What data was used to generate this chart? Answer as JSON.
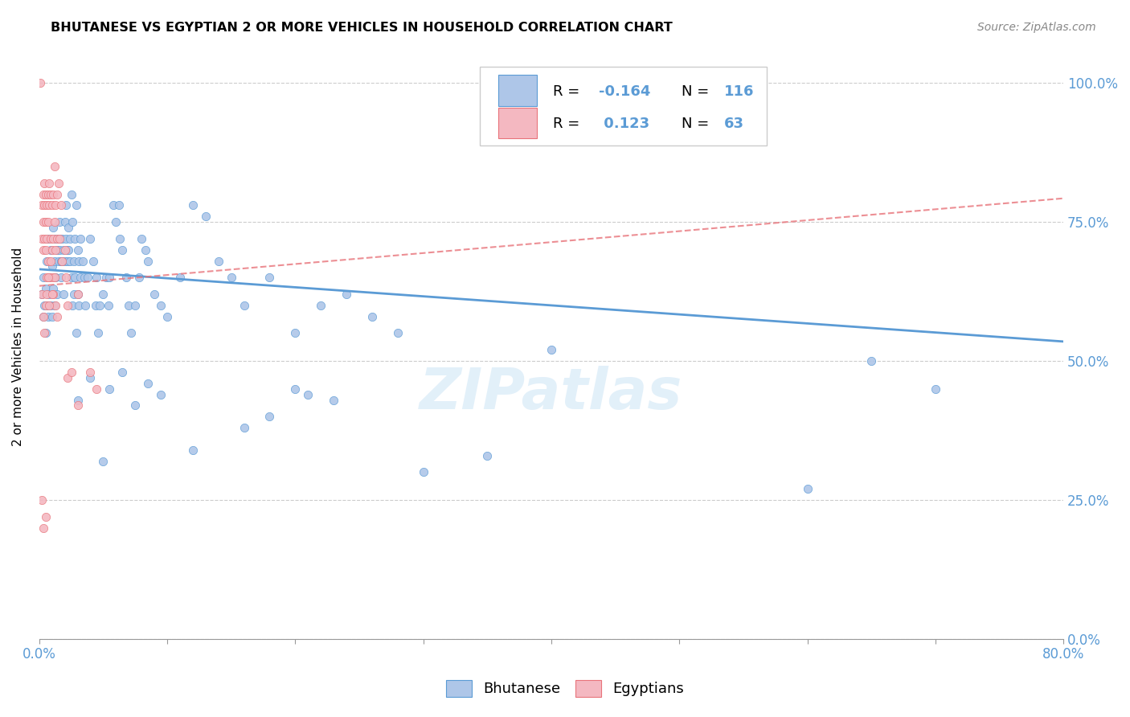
{
  "title": "BHUTANESE VS EGYPTIAN 2 OR MORE VEHICLES IN HOUSEHOLD CORRELATION CHART",
  "source": "Source: ZipAtlas.com",
  "ylabel": "2 or more Vehicles in Household",
  "watermark": "ZIPatlas",
  "blue_R": "-0.164",
  "blue_N": "116",
  "pink_R": "0.123",
  "pink_N": "63",
  "blue_scatter": [
    [
      0.002,
      0.62
    ],
    [
      0.003,
      0.58
    ],
    [
      0.003,
      0.65
    ],
    [
      0.004,
      0.6
    ],
    [
      0.005,
      0.63
    ],
    [
      0.005,
      0.55
    ],
    [
      0.006,
      0.68
    ],
    [
      0.006,
      0.6
    ],
    [
      0.007,
      0.72
    ],
    [
      0.007,
      0.58
    ],
    [
      0.008,
      0.65
    ],
    [
      0.008,
      0.62
    ],
    [
      0.009,
      0.7
    ],
    [
      0.009,
      0.6
    ],
    [
      0.01,
      0.67
    ],
    [
      0.01,
      0.58
    ],
    [
      0.011,
      0.74
    ],
    [
      0.011,
      0.63
    ],
    [
      0.012,
      0.68
    ],
    [
      0.012,
      0.6
    ],
    [
      0.013,
      0.72
    ],
    [
      0.013,
      0.65
    ],
    [
      0.014,
      0.7
    ],
    [
      0.014,
      0.62
    ],
    [
      0.015,
      0.68
    ],
    [
      0.015,
      0.72
    ],
    [
      0.016,
      0.75
    ],
    [
      0.016,
      0.7
    ],
    [
      0.017,
      0.68
    ],
    [
      0.017,
      0.65
    ],
    [
      0.018,
      0.72
    ],
    [
      0.018,
      0.68
    ],
    [
      0.019,
      0.7
    ],
    [
      0.019,
      0.62
    ],
    [
      0.02,
      0.68
    ],
    [
      0.02,
      0.75
    ],
    [
      0.021,
      0.78
    ],
    [
      0.021,
      0.72
    ],
    [
      0.022,
      0.7
    ],
    [
      0.022,
      0.68
    ],
    [
      0.023,
      0.74
    ],
    [
      0.023,
      0.7
    ],
    [
      0.024,
      0.72
    ],
    [
      0.024,
      0.68
    ],
    [
      0.025,
      0.8
    ],
    [
      0.025,
      0.65
    ],
    [
      0.026,
      0.75
    ],
    [
      0.026,
      0.6
    ],
    [
      0.027,
      0.68
    ],
    [
      0.027,
      0.62
    ],
    [
      0.028,
      0.72
    ],
    [
      0.028,
      0.65
    ],
    [
      0.029,
      0.78
    ],
    [
      0.029,
      0.55
    ],
    [
      0.03,
      0.7
    ],
    [
      0.03,
      0.62
    ],
    [
      0.031,
      0.68
    ],
    [
      0.031,
      0.6
    ],
    [
      0.032,
      0.72
    ],
    [
      0.032,
      0.65
    ],
    [
      0.034,
      0.68
    ],
    [
      0.035,
      0.65
    ],
    [
      0.036,
      0.6
    ],
    [
      0.038,
      0.65
    ],
    [
      0.04,
      0.72
    ],
    [
      0.042,
      0.68
    ],
    [
      0.044,
      0.6
    ],
    [
      0.045,
      0.65
    ],
    [
      0.046,
      0.55
    ],
    [
      0.047,
      0.6
    ],
    [
      0.05,
      0.62
    ],
    [
      0.052,
      0.65
    ],
    [
      0.054,
      0.6
    ],
    [
      0.055,
      0.65
    ],
    [
      0.058,
      0.78
    ],
    [
      0.06,
      0.75
    ],
    [
      0.062,
      0.78
    ],
    [
      0.063,
      0.72
    ],
    [
      0.065,
      0.7
    ],
    [
      0.068,
      0.65
    ],
    [
      0.07,
      0.6
    ],
    [
      0.072,
      0.55
    ],
    [
      0.075,
      0.6
    ],
    [
      0.078,
      0.65
    ],
    [
      0.08,
      0.72
    ],
    [
      0.083,
      0.7
    ],
    [
      0.085,
      0.68
    ],
    [
      0.09,
      0.62
    ],
    [
      0.095,
      0.6
    ],
    [
      0.1,
      0.58
    ],
    [
      0.11,
      0.65
    ],
    [
      0.12,
      0.78
    ],
    [
      0.13,
      0.76
    ],
    [
      0.14,
      0.68
    ],
    [
      0.15,
      0.65
    ],
    [
      0.16,
      0.6
    ],
    [
      0.18,
      0.65
    ],
    [
      0.2,
      0.55
    ],
    [
      0.22,
      0.6
    ],
    [
      0.24,
      0.62
    ],
    [
      0.26,
      0.58
    ],
    [
      0.28,
      0.55
    ],
    [
      0.03,
      0.43
    ],
    [
      0.04,
      0.47
    ],
    [
      0.055,
      0.45
    ],
    [
      0.065,
      0.48
    ],
    [
      0.075,
      0.42
    ],
    [
      0.085,
      0.46
    ],
    [
      0.095,
      0.44
    ],
    [
      0.2,
      0.45
    ],
    [
      0.21,
      0.44
    ],
    [
      0.05,
      0.32
    ],
    [
      0.12,
      0.34
    ],
    [
      0.23,
      0.43
    ],
    [
      0.4,
      0.52
    ],
    [
      0.6,
      0.27
    ],
    [
      0.65,
      0.5
    ],
    [
      0.7,
      0.45
    ],
    [
      0.16,
      0.38
    ],
    [
      0.18,
      0.4
    ],
    [
      0.3,
      0.3
    ],
    [
      0.35,
      0.33
    ]
  ],
  "pink_scatter": [
    [
      0.001,
      1.0
    ],
    [
      0.002,
      0.78
    ],
    [
      0.002,
      0.72
    ],
    [
      0.003,
      0.8
    ],
    [
      0.003,
      0.75
    ],
    [
      0.003,
      0.7
    ],
    [
      0.004,
      0.82
    ],
    [
      0.004,
      0.78
    ],
    [
      0.004,
      0.72
    ],
    [
      0.005,
      0.8
    ],
    [
      0.005,
      0.75
    ],
    [
      0.005,
      0.7
    ],
    [
      0.006,
      0.78
    ],
    [
      0.006,
      0.72
    ],
    [
      0.006,
      0.65
    ],
    [
      0.007,
      0.8
    ],
    [
      0.007,
      0.75
    ],
    [
      0.007,
      0.68
    ],
    [
      0.008,
      0.82
    ],
    [
      0.008,
      0.78
    ],
    [
      0.008,
      0.65
    ],
    [
      0.009,
      0.8
    ],
    [
      0.009,
      0.72
    ],
    [
      0.009,
      0.68
    ],
    [
      0.01,
      0.78
    ],
    [
      0.01,
      0.7
    ],
    [
      0.01,
      0.65
    ],
    [
      0.011,
      0.8
    ],
    [
      0.011,
      0.72
    ],
    [
      0.011,
      0.62
    ],
    [
      0.012,
      0.85
    ],
    [
      0.012,
      0.75
    ],
    [
      0.012,
      0.65
    ],
    [
      0.013,
      0.78
    ],
    [
      0.013,
      0.7
    ],
    [
      0.013,
      0.6
    ],
    [
      0.014,
      0.8
    ],
    [
      0.014,
      0.72
    ],
    [
      0.014,
      0.58
    ],
    [
      0.015,
      0.82
    ],
    [
      0.016,
      0.72
    ],
    [
      0.017,
      0.78
    ],
    [
      0.018,
      0.68
    ],
    [
      0.02,
      0.7
    ],
    [
      0.021,
      0.65
    ],
    [
      0.022,
      0.6
    ],
    [
      0.022,
      0.47
    ],
    [
      0.025,
      0.48
    ],
    [
      0.03,
      0.42
    ],
    [
      0.03,
      0.62
    ],
    [
      0.002,
      0.25
    ],
    [
      0.003,
      0.2
    ],
    [
      0.005,
      0.22
    ],
    [
      0.04,
      0.48
    ],
    [
      0.045,
      0.45
    ],
    [
      0.002,
      0.62
    ],
    [
      0.003,
      0.58
    ],
    [
      0.004,
      0.55
    ],
    [
      0.005,
      0.6
    ],
    [
      0.006,
      0.62
    ],
    [
      0.007,
      0.65
    ],
    [
      0.008,
      0.6
    ],
    [
      0.01,
      0.62
    ]
  ],
  "blue_line_x": [
    0.0,
    0.8
  ],
  "blue_line_y": [
    0.665,
    0.535
  ],
  "pink_line_x": [
    0.0,
    0.035
  ],
  "pink_line_y": [
    0.635,
    0.678
  ],
  "blue_color": "#5b9bd5",
  "pink_color": "#e8737a",
  "scatter_blue_color": "#aec6e8",
  "scatter_pink_color": "#f4b8c1",
  "xlim": [
    0.0,
    0.8
  ],
  "ylim": [
    0.0,
    1.05
  ],
  "ytick_vals": [
    0.0,
    0.25,
    0.5,
    0.75,
    1.0
  ],
  "background_color": "#ffffff",
  "grid_color": "#cccccc"
}
